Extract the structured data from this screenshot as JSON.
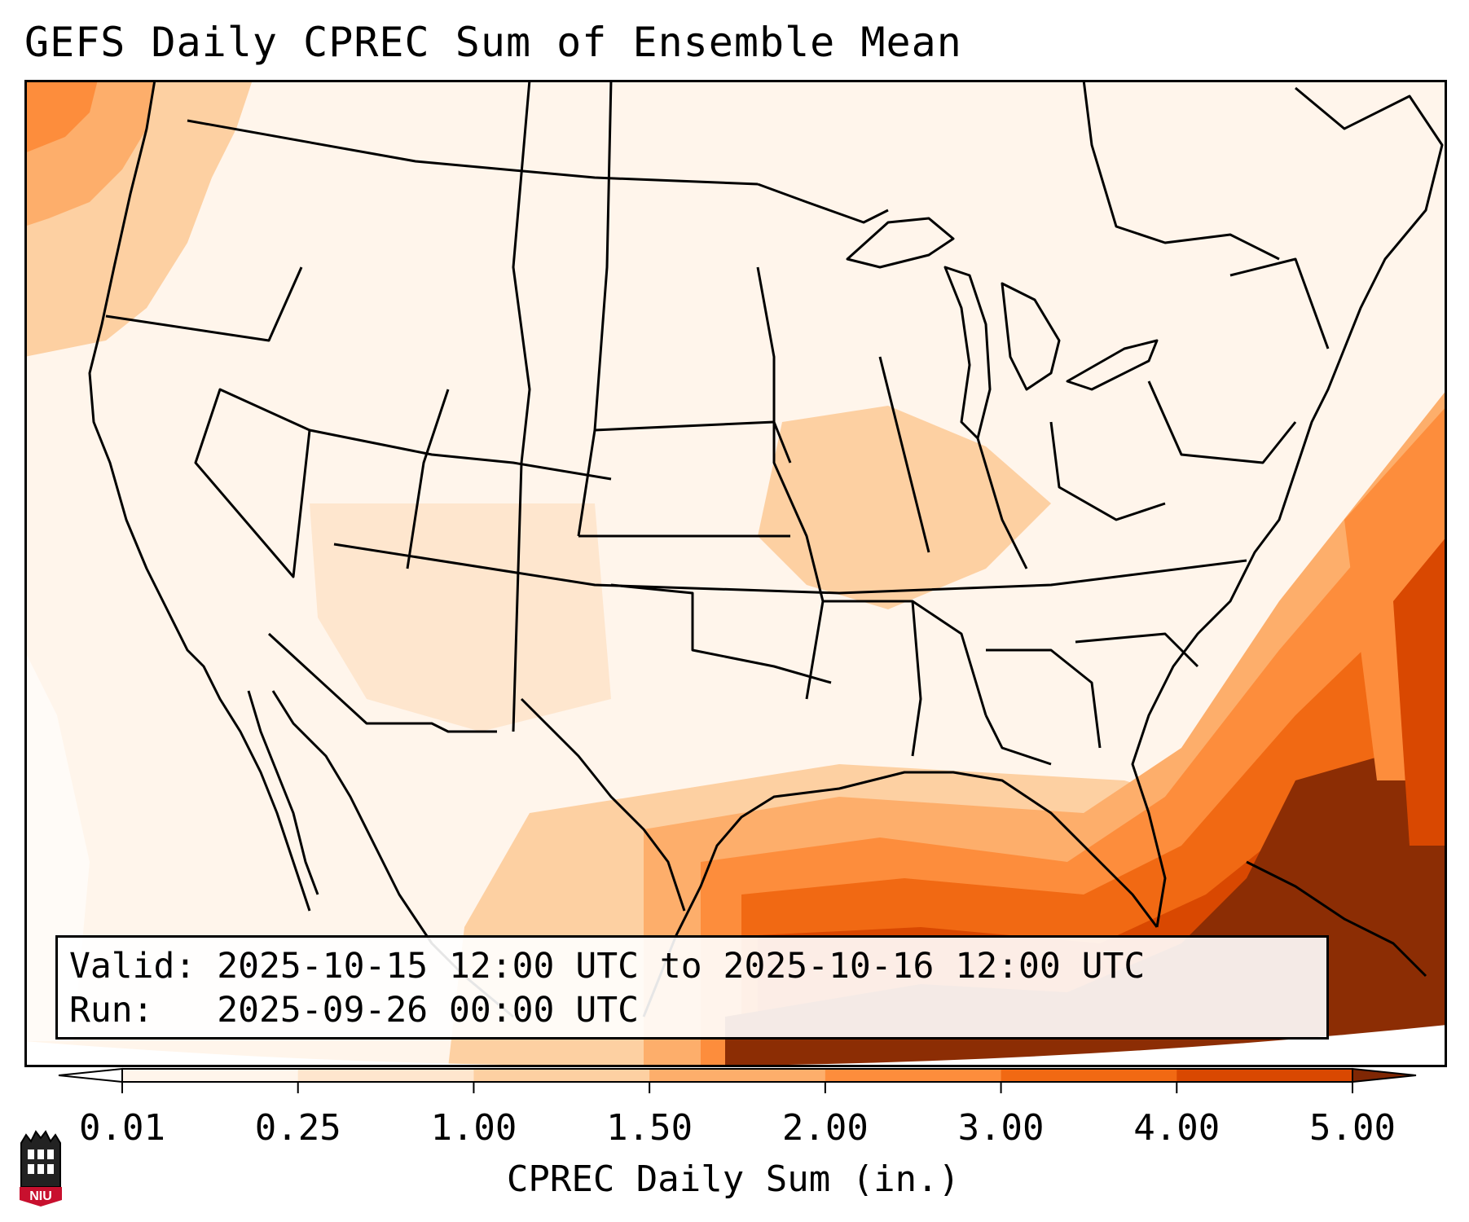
{
  "title": "GEFS Daily CPREC Sum of Ensemble Mean",
  "info": {
    "valid_label": "Valid:",
    "valid_range": "2025-10-15 12:00 UTC to 2025-10-16 12:00 UTC",
    "run_label": "Run:",
    "run_time": "2025-09-26 00:00 UTC"
  },
  "colorbar": {
    "label": "CPREC Daily Sum (in.)",
    "ticks": [
      "0.01",
      "0.25",
      "1.00",
      "1.50",
      "2.00",
      "3.00",
      "4.00",
      "5.00"
    ],
    "colors": [
      "#fff5eb",
      "#fee6ce",
      "#fdd0a2",
      "#fdae6b",
      "#fd8d3c",
      "#f16913",
      "#d94801",
      "#8c2d04"
    ],
    "under_color": "#ffffff",
    "over_color": "#7f2704"
  },
  "map": {
    "projection": "Lambert Conformal",
    "region": "Continental United States, Mexico, Gulf of Mexico, Caribbean"
  },
  "logo": {
    "text": "NIU",
    "color": "#c8102e"
  }
}
